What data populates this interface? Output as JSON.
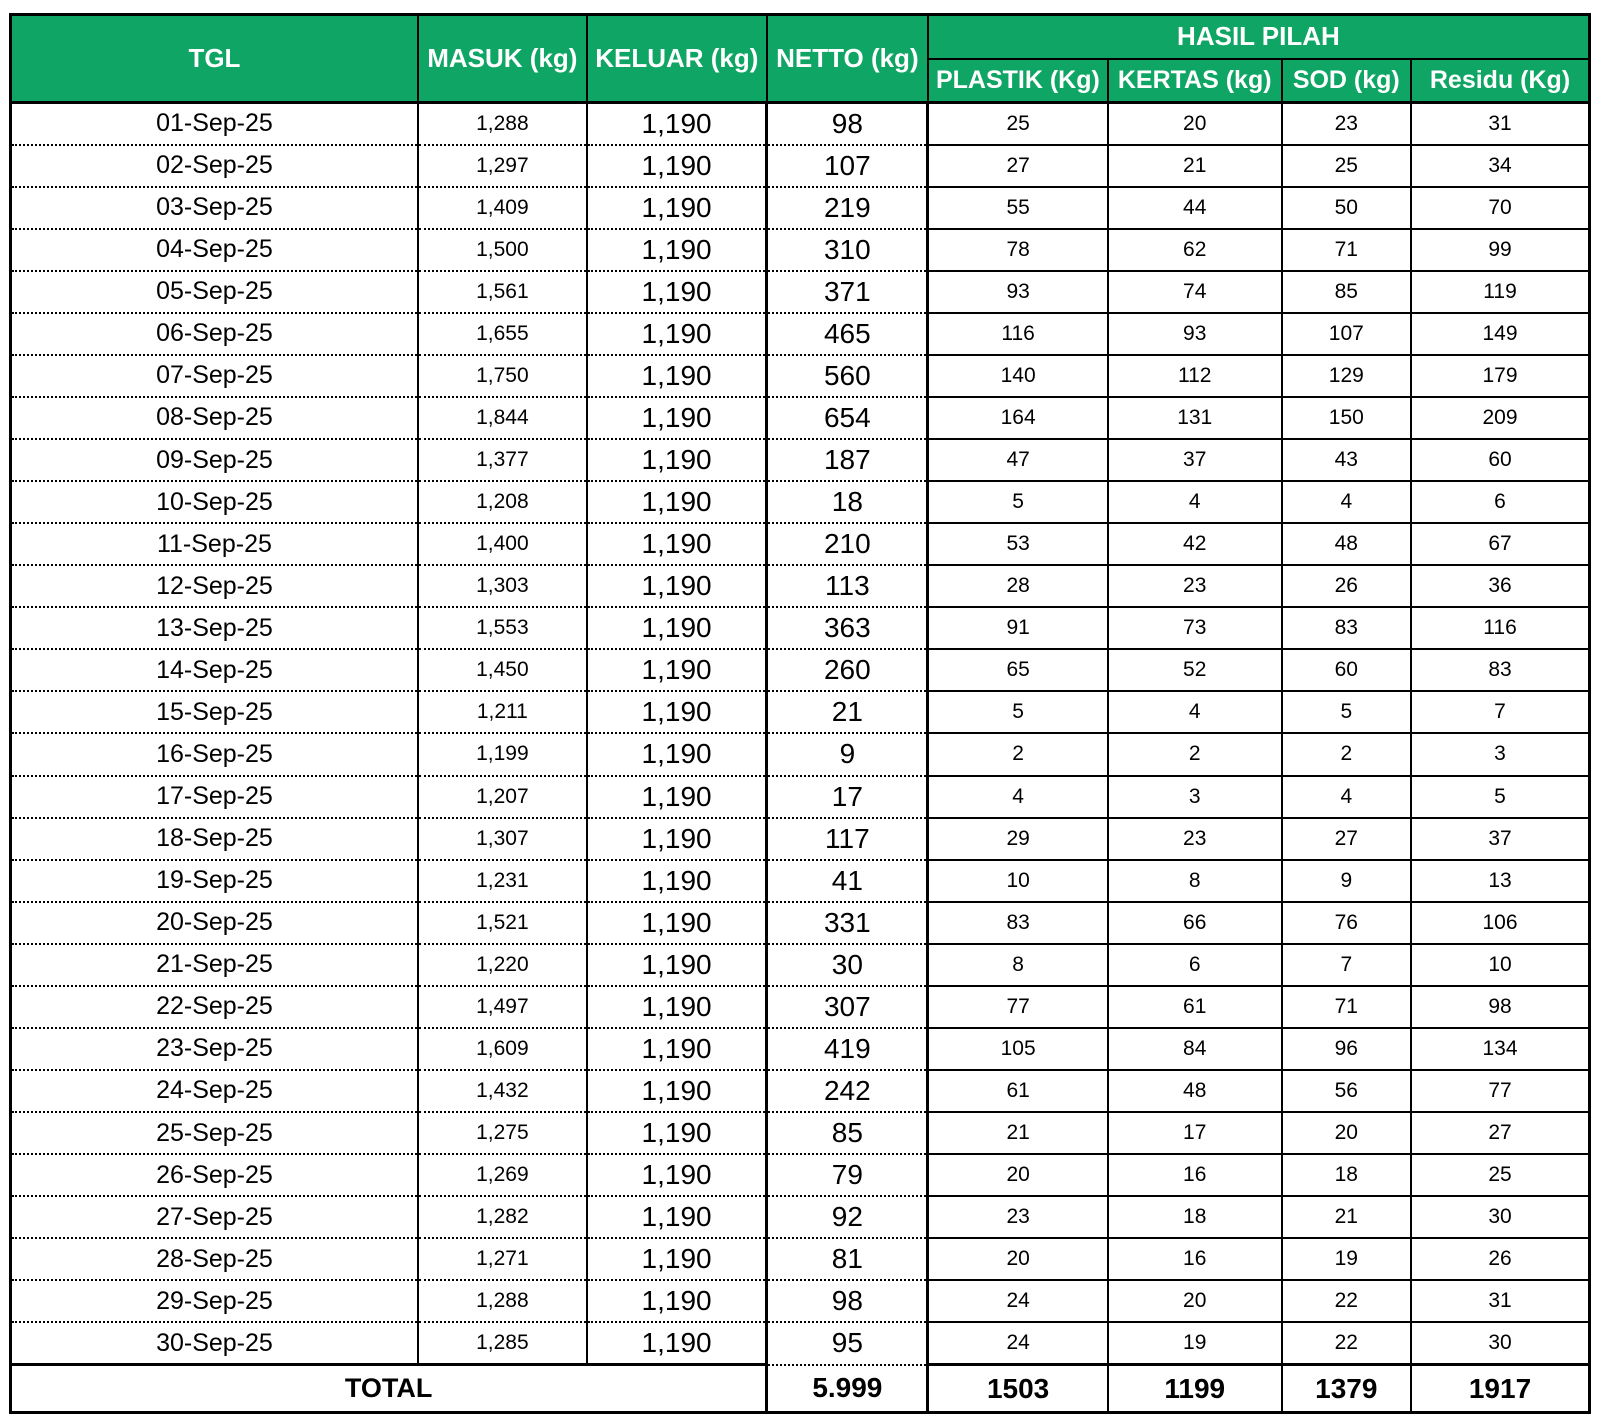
{
  "colors": {
    "header_bg": "#0FA564",
    "header_text": "#FFFFFF",
    "grid": "#000000"
  },
  "table": {
    "headers": {
      "tgl": "TGL",
      "masuk": "MASUK (kg)",
      "keluar": "KELUAR (kg)",
      "netto": "NETTO (kg)",
      "group": "HASIL PILAH",
      "plastik": "PLASTIK (Kg)",
      "kertas": "KERTAS (kg)",
      "sod": "SOD (kg)",
      "residu": "Residu (Kg)"
    }
  },
  "chart_data": {
    "type": "table",
    "title": "HASIL PILAH",
    "columns": [
      "TGL",
      "MASUK (kg)",
      "KELUAR (kg)",
      "NETTO (kg)",
      "PLASTIK (Kg)",
      "KERTAS (kg)",
      "SOD (kg)",
      "Residu (Kg)"
    ],
    "rows": [
      {
        "date": "01-Sep-25",
        "masuk": "1,288",
        "keluar": "1,190",
        "netto": "98",
        "plastik": "25",
        "kertas": "20",
        "sod": "23",
        "residu": "31"
      },
      {
        "date": "02-Sep-25",
        "masuk": "1,297",
        "keluar": "1,190",
        "netto": "107",
        "plastik": "27",
        "kertas": "21",
        "sod": "25",
        "residu": "34"
      },
      {
        "date": "03-Sep-25",
        "masuk": "1,409",
        "keluar": "1,190",
        "netto": "219",
        "plastik": "55",
        "kertas": "44",
        "sod": "50",
        "residu": "70"
      },
      {
        "date": "04-Sep-25",
        "masuk": "1,500",
        "keluar": "1,190",
        "netto": "310",
        "plastik": "78",
        "kertas": "62",
        "sod": "71",
        "residu": "99"
      },
      {
        "date": "05-Sep-25",
        "masuk": "1,561",
        "keluar": "1,190",
        "netto": "371",
        "plastik": "93",
        "kertas": "74",
        "sod": "85",
        "residu": "119"
      },
      {
        "date": "06-Sep-25",
        "masuk": "1,655",
        "keluar": "1,190",
        "netto": "465",
        "plastik": "116",
        "kertas": "93",
        "sod": "107",
        "residu": "149"
      },
      {
        "date": "07-Sep-25",
        "masuk": "1,750",
        "keluar": "1,190",
        "netto": "560",
        "plastik": "140",
        "kertas": "112",
        "sod": "129",
        "residu": "179"
      },
      {
        "date": "08-Sep-25",
        "masuk": "1,844",
        "keluar": "1,190",
        "netto": "654",
        "plastik": "164",
        "kertas": "131",
        "sod": "150",
        "residu": "209"
      },
      {
        "date": "09-Sep-25",
        "masuk": "1,377",
        "keluar": "1,190",
        "netto": "187",
        "plastik": "47",
        "kertas": "37",
        "sod": "43",
        "residu": "60"
      },
      {
        "date": "10-Sep-25",
        "masuk": "1,208",
        "keluar": "1,190",
        "netto": "18",
        "plastik": "5",
        "kertas": "4",
        "sod": "4",
        "residu": "6"
      },
      {
        "date": "11-Sep-25",
        "masuk": "1,400",
        "keluar": "1,190",
        "netto": "210",
        "plastik": "53",
        "kertas": "42",
        "sod": "48",
        "residu": "67"
      },
      {
        "date": "12-Sep-25",
        "masuk": "1,303",
        "keluar": "1,190",
        "netto": "113",
        "plastik": "28",
        "kertas": "23",
        "sod": "26",
        "residu": "36"
      },
      {
        "date": "13-Sep-25",
        "masuk": "1,553",
        "keluar": "1,190",
        "netto": "363",
        "plastik": "91",
        "kertas": "73",
        "sod": "83",
        "residu": "116"
      },
      {
        "date": "14-Sep-25",
        "masuk": "1,450",
        "keluar": "1,190",
        "netto": "260",
        "plastik": "65",
        "kertas": "52",
        "sod": "60",
        "residu": "83"
      },
      {
        "date": "15-Sep-25",
        "masuk": "1,211",
        "keluar": "1,190",
        "netto": "21",
        "plastik": "5",
        "kertas": "4",
        "sod": "5",
        "residu": "7"
      },
      {
        "date": "16-Sep-25",
        "masuk": "1,199",
        "keluar": "1,190",
        "netto": "9",
        "plastik": "2",
        "kertas": "2",
        "sod": "2",
        "residu": "3"
      },
      {
        "date": "17-Sep-25",
        "masuk": "1,207",
        "keluar": "1,190",
        "netto": "17",
        "plastik": "4",
        "kertas": "3",
        "sod": "4",
        "residu": "5"
      },
      {
        "date": "18-Sep-25",
        "masuk": "1,307",
        "keluar": "1,190",
        "netto": "117",
        "plastik": "29",
        "kertas": "23",
        "sod": "27",
        "residu": "37"
      },
      {
        "date": "19-Sep-25",
        "masuk": "1,231",
        "keluar": "1,190",
        "netto": "41",
        "plastik": "10",
        "kertas": "8",
        "sod": "9",
        "residu": "13"
      },
      {
        "date": "20-Sep-25",
        "masuk": "1,521",
        "keluar": "1,190",
        "netto": "331",
        "plastik": "83",
        "kertas": "66",
        "sod": "76",
        "residu": "106"
      },
      {
        "date": "21-Sep-25",
        "masuk": "1,220",
        "keluar": "1,190",
        "netto": "30",
        "plastik": "8",
        "kertas": "6",
        "sod": "7",
        "residu": "10"
      },
      {
        "date": "22-Sep-25",
        "masuk": "1,497",
        "keluar": "1,190",
        "netto": "307",
        "plastik": "77",
        "kertas": "61",
        "sod": "71",
        "residu": "98"
      },
      {
        "date": "23-Sep-25",
        "masuk": "1,609",
        "keluar": "1,190",
        "netto": "419",
        "plastik": "105",
        "kertas": "84",
        "sod": "96",
        "residu": "134"
      },
      {
        "date": "24-Sep-25",
        "masuk": "1,432",
        "keluar": "1,190",
        "netto": "242",
        "plastik": "61",
        "kertas": "48",
        "sod": "56",
        "residu": "77"
      },
      {
        "date": "25-Sep-25",
        "masuk": "1,275",
        "keluar": "1,190",
        "netto": "85",
        "plastik": "21",
        "kertas": "17",
        "sod": "20",
        "residu": "27"
      },
      {
        "date": "26-Sep-25",
        "masuk": "1,269",
        "keluar": "1,190",
        "netto": "79",
        "plastik": "20",
        "kertas": "16",
        "sod": "18",
        "residu": "25"
      },
      {
        "date": "27-Sep-25",
        "masuk": "1,282",
        "keluar": "1,190",
        "netto": "92",
        "plastik": "23",
        "kertas": "18",
        "sod": "21",
        "residu": "30"
      },
      {
        "date": "28-Sep-25",
        "masuk": "1,271",
        "keluar": "1,190",
        "netto": "81",
        "plastik": "20",
        "kertas": "16",
        "sod": "19",
        "residu": "26"
      },
      {
        "date": "29-Sep-25",
        "masuk": "1,288",
        "keluar": "1,190",
        "netto": "98",
        "plastik": "24",
        "kertas": "20",
        "sod": "22",
        "residu": "31"
      },
      {
        "date": "30-Sep-25",
        "masuk": "1,285",
        "keluar": "1,190",
        "netto": "95",
        "plastik": "24",
        "kertas": "19",
        "sod": "22",
        "residu": "30"
      }
    ],
    "totals": {
      "label": "TOTAL",
      "netto": "5.999",
      "plastik": "1503",
      "kertas": "1199",
      "sod": "1379",
      "residu": "1917"
    }
  }
}
